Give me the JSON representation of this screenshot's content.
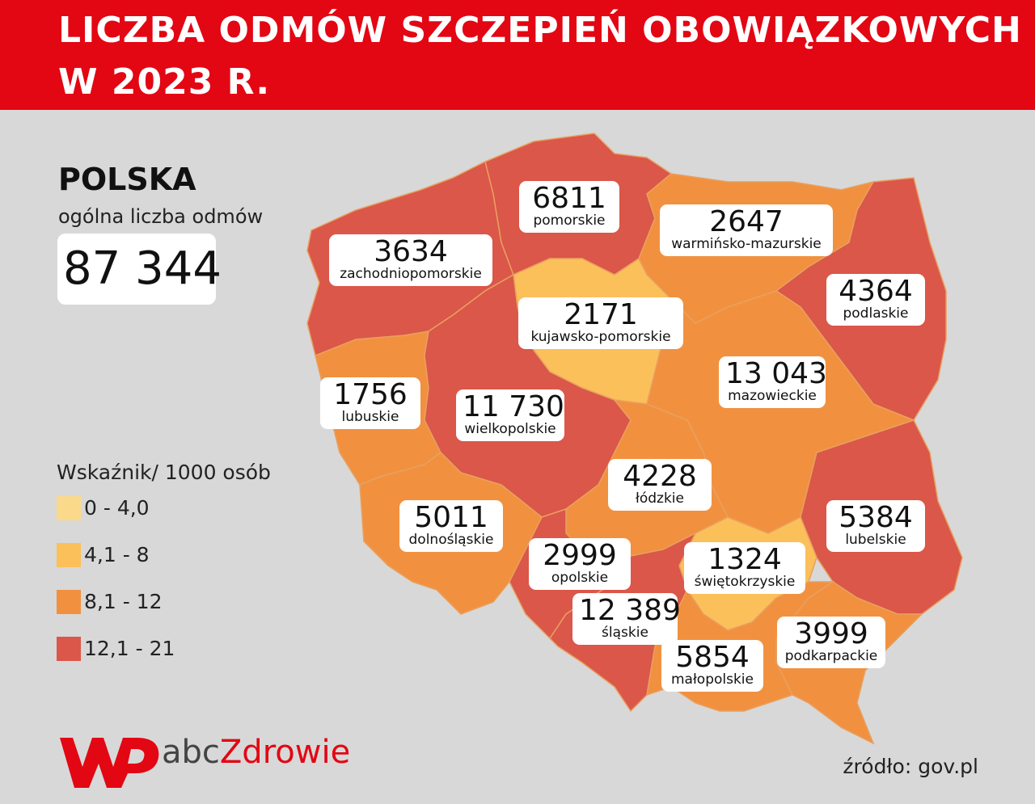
{
  "header": {
    "line1": "LICZBA ODMÓW SZCZEPIEŃ OBOWIĄZKOWYCH",
    "line2": "W 2023 R."
  },
  "summary": {
    "country": "POLSKA",
    "subtitle": "ogólna liczba odmów",
    "total": "87 344"
  },
  "legend": {
    "title": "Wskaźnik/ 1000 osób",
    "items": [
      {
        "label": "0 - 4,0",
        "color": "#fad98a"
      },
      {
        "label": "4,1 - 8",
        "color": "#fbc05a"
      },
      {
        "label": "8,1 - 12",
        "color": "#f1913f"
      },
      {
        "label": "12,1 - 21",
        "color": "#da5749"
      }
    ]
  },
  "regions": [
    {
      "name": "pomorskie",
      "value": "6811",
      "color": "#da5749"
    },
    {
      "name": "warmińsko-mazurskie",
      "value": "2647",
      "color": "#f1913f"
    },
    {
      "name": "zachodniopomorskie",
      "value": "3634",
      "color": "#da5749"
    },
    {
      "name": "podlaskie",
      "value": "4364",
      "color": "#da5749"
    },
    {
      "name": "kujawsko-pomorskie",
      "value": "2171",
      "color": "#fbc05a"
    },
    {
      "name": "mazowieckie",
      "value": "13 043",
      "color": "#f1913f"
    },
    {
      "name": "lubuskie",
      "value": "1756",
      "color": "#f1913f"
    },
    {
      "name": "wielkopolskie",
      "value": "11 730",
      "color": "#da5749"
    },
    {
      "name": "łódzkie",
      "value": "4228",
      "color": "#f1913f"
    },
    {
      "name": "dolnośląskie",
      "value": "5011",
      "color": "#f1913f"
    },
    {
      "name": "lubelskie",
      "value": "5384",
      "color": "#da5749"
    },
    {
      "name": "opolskie",
      "value": "2999",
      "color": "#da5749"
    },
    {
      "name": "świętokrzyskie",
      "value": "1324",
      "color": "#fbc05a"
    },
    {
      "name": "śląskie",
      "value": "12 389",
      "color": "#da5749"
    },
    {
      "name": "podkarpackie",
      "value": "3999",
      "color": "#f1913f"
    },
    {
      "name": "małopolskie",
      "value": "5854",
      "color": "#f1913f"
    }
  ],
  "brand": {
    "abc": "abc",
    "zdrowie": "Zdrowie"
  },
  "source": "źródło: gov.pl"
}
